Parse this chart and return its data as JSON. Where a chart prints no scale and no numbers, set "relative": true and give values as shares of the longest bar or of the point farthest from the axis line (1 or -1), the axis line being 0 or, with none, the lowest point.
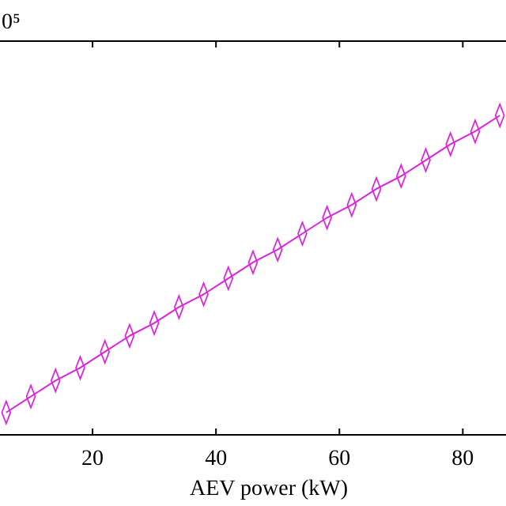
{
  "chart_data": {
    "type": "line",
    "xlabel": "AEV power  (kW)",
    "annotations": [
      "0⁵"
    ],
    "relative": true,
    "xlim": [
      5,
      87
    ],
    "xticks": [
      20,
      40,
      60,
      80
    ],
    "x": [
      6,
      10,
      14,
      18,
      22,
      26,
      30,
      34,
      38,
      42,
      46,
      50,
      54,
      58,
      62,
      66,
      70,
      74,
      78,
      82,
      86
    ],
    "series": [
      {
        "color": "#e020e0",
        "values": [
          0.07,
          0.12,
          0.17,
          0.21,
          0.26,
          0.31,
          0.35,
          0.4,
          0.44,
          0.49,
          0.54,
          0.58,
          0.63,
          0.68,
          0.72,
          0.77,
          0.81,
          0.86,
          0.91,
          0.95,
          1
        ]
      }
    ],
    "marker": "diamond",
    "grid": false
  }
}
